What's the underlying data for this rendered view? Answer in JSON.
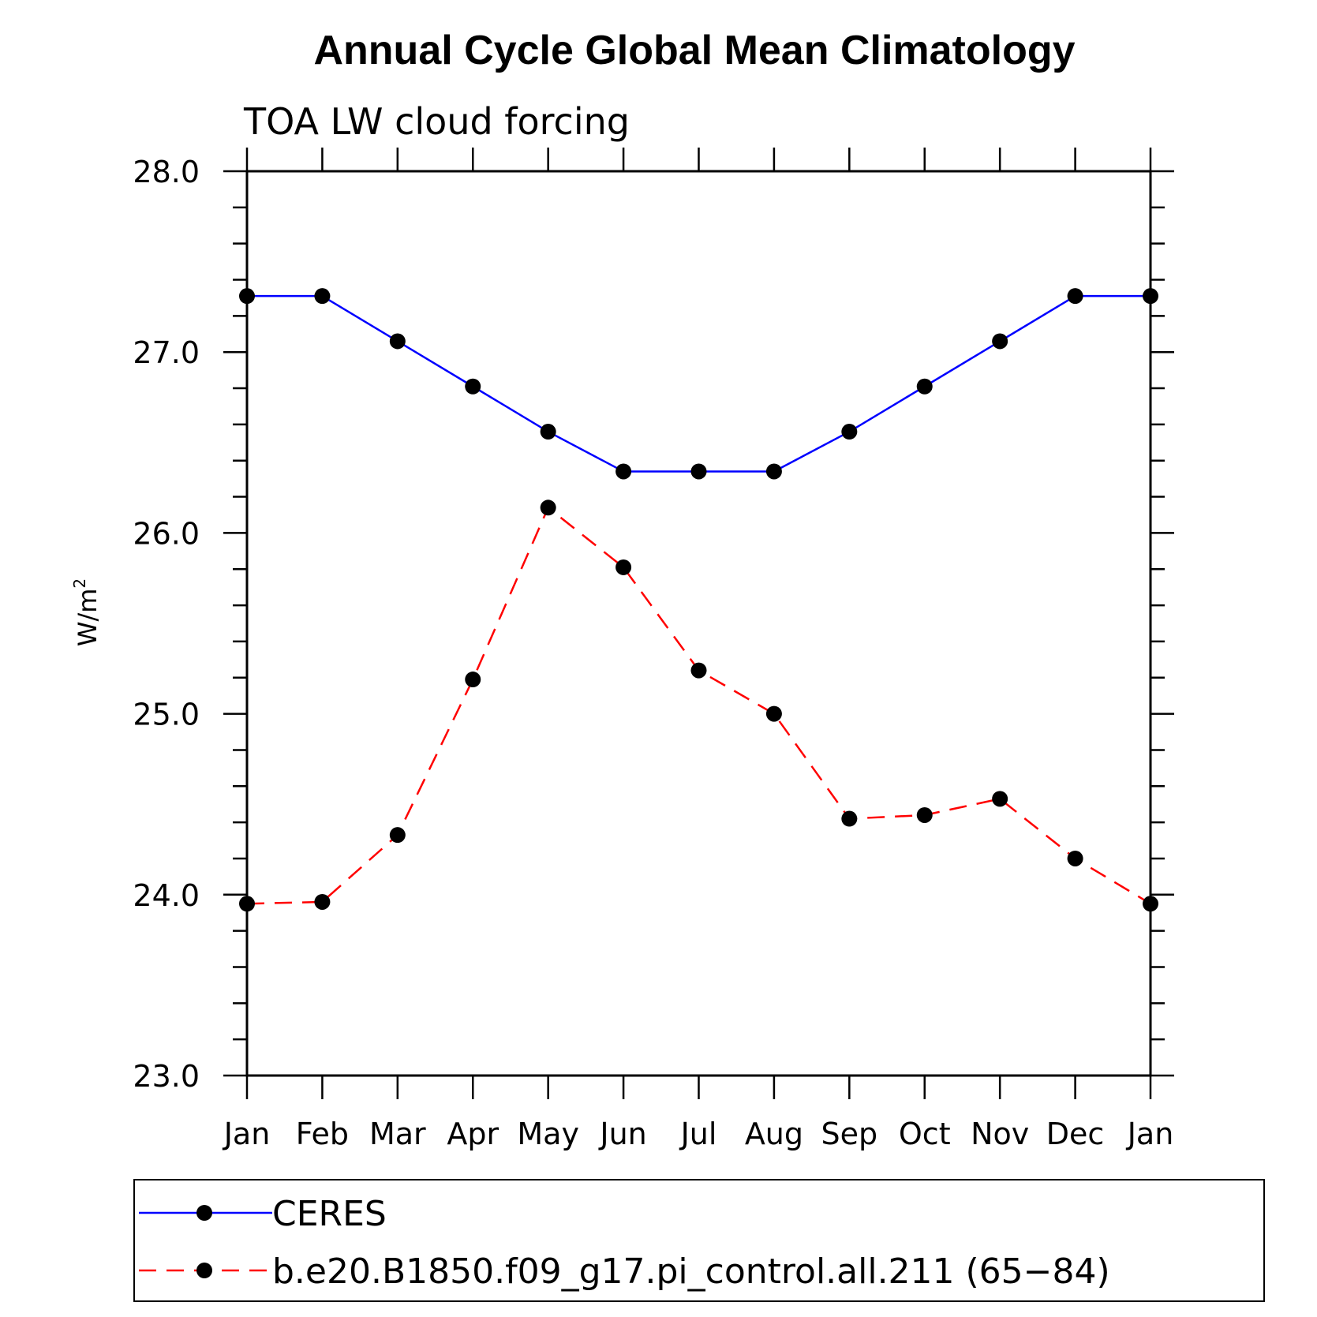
{
  "chart_data": {
    "type": "line",
    "title": "Annual Cycle Global Mean Climatology",
    "subtitle": "TOA LW cloud forcing",
    "ylabel": "W/m",
    "ylabel_superscript": "2",
    "xlabel": "",
    "categories": [
      "Jan",
      "Feb",
      "Mar",
      "Apr",
      "May",
      "Jun",
      "Jul",
      "Aug",
      "Sep",
      "Oct",
      "Nov",
      "Dec",
      "Jan"
    ],
    "ylim": [
      23.0,
      28.0
    ],
    "yticks": [
      "23.0",
      "24.0",
      "25.0",
      "26.0",
      "27.0",
      "28.0"
    ],
    "grid": false,
    "legend_position": "bottom",
    "series": [
      {
        "name": "CERES",
        "color": "#0000ff",
        "line_style": "solid",
        "marker": "filled-circle",
        "values": [
          27.31,
          27.31,
          27.06,
          26.81,
          26.56,
          26.34,
          26.34,
          26.34,
          26.56,
          26.81,
          27.06,
          27.31,
          27.31
        ]
      },
      {
        "name": "b.e20.B1850.f09_g17.pi_control.all.211 (65−84)",
        "color": "#ff0000",
        "line_style": "dashed",
        "marker": "filled-circle",
        "values": [
          23.95,
          23.96,
          24.33,
          25.19,
          26.14,
          25.81,
          25.24,
          25.0,
          24.42,
          24.44,
          24.53,
          24.2,
          23.95
        ]
      }
    ]
  }
}
